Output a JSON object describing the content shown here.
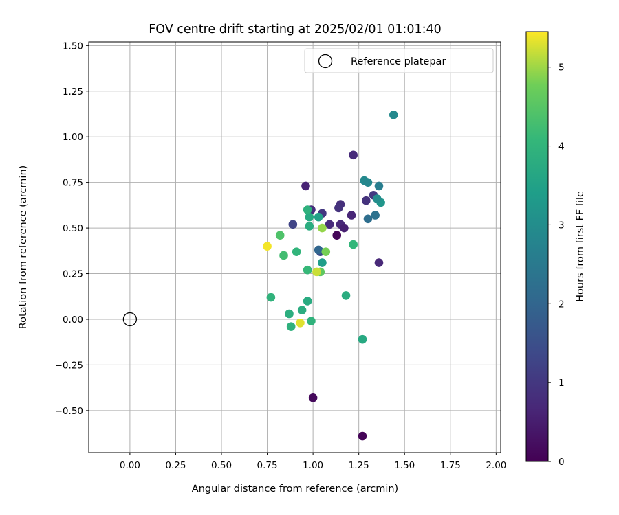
{
  "chart_data": {
    "type": "scatter",
    "title": "FOV centre drift starting at 2025/02/01 01:01:40",
    "xlabel": "Angular distance from reference (arcmin)",
    "ylabel": "Rotation from reference (arcmin)",
    "xlim": [
      -0.225,
      2.025
    ],
    "ylim": [
      -0.73,
      1.52
    ],
    "xticks": [
      0.0,
      0.25,
      0.5,
      0.75,
      1.0,
      1.25,
      1.5,
      1.75,
      2.0
    ],
    "xtick_labels": [
      "0.00",
      "0.25",
      "0.50",
      "0.75",
      "1.00",
      "1.25",
      "1.50",
      "1.75",
      "2.00"
    ],
    "yticks": [
      -0.5,
      -0.25,
      0.0,
      0.25,
      0.5,
      0.75,
      1.0,
      1.25,
      1.5
    ],
    "ytick_labels": [
      "−0.50",
      "−0.25",
      "0.00",
      "0.25",
      "0.50",
      "0.75",
      "1.00",
      "1.25",
      "1.50"
    ],
    "grid": true,
    "legend": {
      "placement": "top-right",
      "label": "Reference platepar"
    },
    "reference_point": {
      "x": 0.0,
      "y": 0.0
    },
    "colorbar": {
      "label": "Hours from first FF file",
      "colormap": "viridis",
      "range": [
        0,
        5.45
      ],
      "ticks": [
        0,
        1,
        2,
        3,
        4,
        5
      ],
      "tick_labels": [
        "0",
        "1",
        "2",
        "3",
        "4",
        "5"
      ]
    },
    "points": [
      {
        "x": 1.27,
        "y": -0.64,
        "t": 0.05
      },
      {
        "x": 1.0,
        "y": -0.43,
        "t": 0.15
      },
      {
        "x": 1.13,
        "y": 0.46,
        "t": 0.1
      },
      {
        "x": 0.96,
        "y": 0.73,
        "t": 0.6
      },
      {
        "x": 1.22,
        "y": 0.9,
        "t": 0.75
      },
      {
        "x": 0.99,
        "y": 0.6,
        "t": 0.8
      },
      {
        "x": 1.05,
        "y": 0.58,
        "t": 1.0
      },
      {
        "x": 1.15,
        "y": 0.63,
        "t": 0.85
      },
      {
        "x": 1.14,
        "y": 0.61,
        "t": 0.9
      },
      {
        "x": 1.15,
        "y": 0.52,
        "t": 0.7
      },
      {
        "x": 1.17,
        "y": 0.5,
        "t": 0.55
      },
      {
        "x": 1.09,
        "y": 0.52,
        "t": 0.75
      },
      {
        "x": 1.21,
        "y": 0.57,
        "t": 0.65
      },
      {
        "x": 1.29,
        "y": 0.65,
        "t": 0.9
      },
      {
        "x": 1.33,
        "y": 0.68,
        "t": 1.05
      },
      {
        "x": 1.36,
        "y": 0.31,
        "t": 0.7
      },
      {
        "x": 0.89,
        "y": 0.52,
        "t": 1.25
      },
      {
        "x": 1.04,
        "y": 0.37,
        "t": 1.4
      },
      {
        "x": 1.03,
        "y": 0.38,
        "t": 2.0
      },
      {
        "x": 1.3,
        "y": 0.55,
        "t": 2.2
      },
      {
        "x": 1.34,
        "y": 0.57,
        "t": 2.3
      },
      {
        "x": 1.36,
        "y": 0.73,
        "t": 2.6
      },
      {
        "x": 1.28,
        "y": 0.76,
        "t": 2.9
      },
      {
        "x": 1.3,
        "y": 0.75,
        "t": 2.85
      },
      {
        "x": 1.44,
        "y": 1.12,
        "t": 2.9
      },
      {
        "x": 1.37,
        "y": 0.64,
        "t": 3.2
      },
      {
        "x": 1.35,
        "y": 0.66,
        "t": 3.0
      },
      {
        "x": 1.05,
        "y": 0.31,
        "t": 3.4
      },
      {
        "x": 1.03,
        "y": 0.56,
        "t": 3.5
      },
      {
        "x": 0.98,
        "y": 0.56,
        "t": 3.7
      },
      {
        "x": 0.97,
        "y": 0.6,
        "t": 3.9
      },
      {
        "x": 0.98,
        "y": 0.51,
        "t": 3.8
      },
      {
        "x": 1.27,
        "y": -0.11,
        "t": 3.7
      },
      {
        "x": 1.18,
        "y": 0.13,
        "t": 3.8
      },
      {
        "x": 0.97,
        "y": 0.1,
        "t": 3.75
      },
      {
        "x": 0.94,
        "y": 0.05,
        "t": 3.8
      },
      {
        "x": 0.87,
        "y": 0.03,
        "t": 3.85
      },
      {
        "x": 0.88,
        "y": -0.04,
        "t": 3.9
      },
      {
        "x": 0.99,
        "y": -0.01,
        "t": 3.95
      },
      {
        "x": 0.77,
        "y": 0.12,
        "t": 3.95
      },
      {
        "x": 0.91,
        "y": 0.37,
        "t": 4.0
      },
      {
        "x": 1.22,
        "y": 0.41,
        "t": 4.05
      },
      {
        "x": 0.97,
        "y": 0.27,
        "t": 4.1
      },
      {
        "x": 0.84,
        "y": 0.35,
        "t": 4.25
      },
      {
        "x": 0.82,
        "y": 0.46,
        "t": 4.4
      },
      {
        "x": 1.04,
        "y": 0.26,
        "t": 4.6
      },
      {
        "x": 1.07,
        "y": 0.37,
        "t": 4.8
      },
      {
        "x": 1.05,
        "y": 0.5,
        "t": 4.95
      },
      {
        "x": 1.02,
        "y": 0.26,
        "t": 5.2
      },
      {
        "x": 0.93,
        "y": -0.02,
        "t": 5.3
      },
      {
        "x": 0.75,
        "y": 0.4,
        "t": 5.4
      }
    ]
  }
}
